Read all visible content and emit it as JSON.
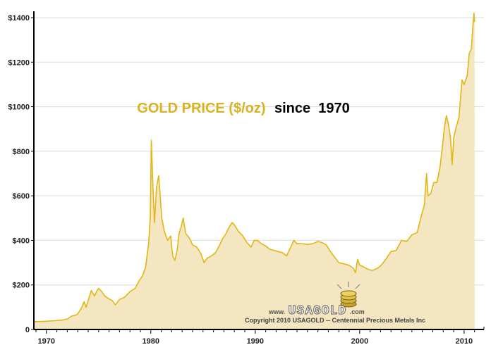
{
  "chart_data": {
    "type": "area",
    "title_gold": "GOLD PRICE ($/oz)",
    "title_black": "since  1970",
    "xlabel": "",
    "ylabel": "",
    "xlim": [
      1968.8,
      2011.9
    ],
    "ylim": [
      0,
      1400
    ],
    "y_ticks": [
      0,
      200,
      400,
      600,
      800,
      1000,
      1200,
      1400
    ],
    "y_tick_labels": [
      "0",
      "$200",
      "$400",
      "$600",
      "$800",
      "$1000",
      "$1200",
      "$1400"
    ],
    "x_ticks": [
      1970,
      1980,
      1990,
      2000,
      2010
    ],
    "x_tick_labels": [
      "1970",
      "1980",
      "1990",
      "2000",
      "2010"
    ],
    "grid": true,
    "colors": {
      "line": "#e2b714",
      "fill": "#f3e6c0",
      "grid": "#dcdcdc",
      "title_gold": "#d9b21f"
    },
    "series": [
      {
        "name": "Gold price",
        "points": [
          [
            1968.8,
            35
          ],
          [
            1970.0,
            37
          ],
          [
            1971.0,
            40
          ],
          [
            1971.6,
            43
          ],
          [
            1972.0,
            47
          ],
          [
            1972.4,
            60
          ],
          [
            1972.8,
            64
          ],
          [
            1973.0,
            70
          ],
          [
            1973.4,
            100
          ],
          [
            1973.6,
            125
          ],
          [
            1973.8,
            100
          ],
          [
            1974.0,
            130
          ],
          [
            1974.3,
            175
          ],
          [
            1974.6,
            150
          ],
          [
            1974.8,
            170
          ],
          [
            1975.0,
            185
          ],
          [
            1975.3,
            170
          ],
          [
            1975.6,
            150
          ],
          [
            1975.9,
            140
          ],
          [
            1976.3,
            130
          ],
          [
            1976.6,
            110
          ],
          [
            1977.0,
            135
          ],
          [
            1977.5,
            145
          ],
          [
            1978.0,
            170
          ],
          [
            1978.5,
            185
          ],
          [
            1978.9,
            220
          ],
          [
            1979.2,
            240
          ],
          [
            1979.5,
            280
          ],
          [
            1979.8,
            390
          ],
          [
            1979.95,
            510
          ],
          [
            1980.05,
            850
          ],
          [
            1980.2,
            640
          ],
          [
            1980.35,
            480
          ],
          [
            1980.55,
            640
          ],
          [
            1980.75,
            690
          ],
          [
            1980.9,
            600
          ],
          [
            1981.05,
            500
          ],
          [
            1981.3,
            440
          ],
          [
            1981.6,
            400
          ],
          [
            1981.9,
            420
          ],
          [
            1982.1,
            330
          ],
          [
            1982.3,
            310
          ],
          [
            1982.5,
            350
          ],
          [
            1982.7,
            430
          ],
          [
            1982.9,
            460
          ],
          [
            1983.1,
            500
          ],
          [
            1983.35,
            430
          ],
          [
            1983.7,
            410
          ],
          [
            1984.0,
            380
          ],
          [
            1984.4,
            370
          ],
          [
            1984.8,
            340
          ],
          [
            1985.1,
            300
          ],
          [
            1985.4,
            320
          ],
          [
            1985.8,
            330
          ],
          [
            1986.2,
            345
          ],
          [
            1986.6,
            380
          ],
          [
            1986.9,
            410
          ],
          [
            1987.2,
            430
          ],
          [
            1987.5,
            460
          ],
          [
            1987.8,
            480
          ],
          [
            1988.0,
            470
          ],
          [
            1988.4,
            440
          ],
          [
            1988.8,
            420
          ],
          [
            1989.2,
            390
          ],
          [
            1989.6,
            370
          ],
          [
            1989.9,
            400
          ],
          [
            1990.2,
            400
          ],
          [
            1990.6,
            385
          ],
          [
            1991.0,
            375
          ],
          [
            1991.4,
            360
          ],
          [
            1991.8,
            355
          ],
          [
            1992.2,
            350
          ],
          [
            1992.6,
            345
          ],
          [
            1993.0,
            330
          ],
          [
            1993.4,
            370
          ],
          [
            1993.7,
            400
          ],
          [
            1994.0,
            385
          ],
          [
            1994.5,
            385
          ],
          [
            1995.0,
            382
          ],
          [
            1995.5,
            385
          ],
          [
            1996.0,
            395
          ],
          [
            1996.4,
            390
          ],
          [
            1996.8,
            380
          ],
          [
            1997.2,
            350
          ],
          [
            1997.6,
            325
          ],
          [
            1998.0,
            300
          ],
          [
            1998.5,
            295
          ],
          [
            1999.0,
            288
          ],
          [
            1999.4,
            275
          ],
          [
            1999.6,
            255
          ],
          [
            1999.8,
            315
          ],
          [
            2000.0,
            290
          ],
          [
            2000.4,
            280
          ],
          [
            2000.8,
            270
          ],
          [
            2001.2,
            265
          ],
          [
            2001.6,
            272
          ],
          [
            2002.0,
            285
          ],
          [
            2002.5,
            315
          ],
          [
            2003.0,
            350
          ],
          [
            2003.5,
            355
          ],
          [
            2004.0,
            400
          ],
          [
            2004.5,
            395
          ],
          [
            2005.0,
            425
          ],
          [
            2005.5,
            435
          ],
          [
            2005.9,
            510
          ],
          [
            2006.2,
            560
          ],
          [
            2006.4,
            700
          ],
          [
            2006.55,
            600
          ],
          [
            2006.8,
            610
          ],
          [
            2007.1,
            660
          ],
          [
            2007.4,
            660
          ],
          [
            2007.7,
            730
          ],
          [
            2007.9,
            810
          ],
          [
            2008.1,
            900
          ],
          [
            2008.3,
            960
          ],
          [
            2008.5,
            920
          ],
          [
            2008.7,
            860
          ],
          [
            2008.85,
            740
          ],
          [
            2009.0,
            860
          ],
          [
            2009.2,
            900
          ],
          [
            2009.5,
            950
          ],
          [
            2009.8,
            1120
          ],
          [
            2010.0,
            1100
          ],
          [
            2010.3,
            1140
          ],
          [
            2010.5,
            1240
          ],
          [
            2010.7,
            1260
          ],
          [
            2010.85,
            1370
          ],
          [
            2010.95,
            1420
          ],
          [
            2011.0,
            1380
          ]
        ]
      }
    ],
    "annotations": {
      "website_prefix": "www.",
      "website_brand": "USAGOLD",
      "website_suffix": ".com",
      "copyright": "Copyright 2010 USAGOLD -- Centennial Precious Metals Inc"
    }
  }
}
